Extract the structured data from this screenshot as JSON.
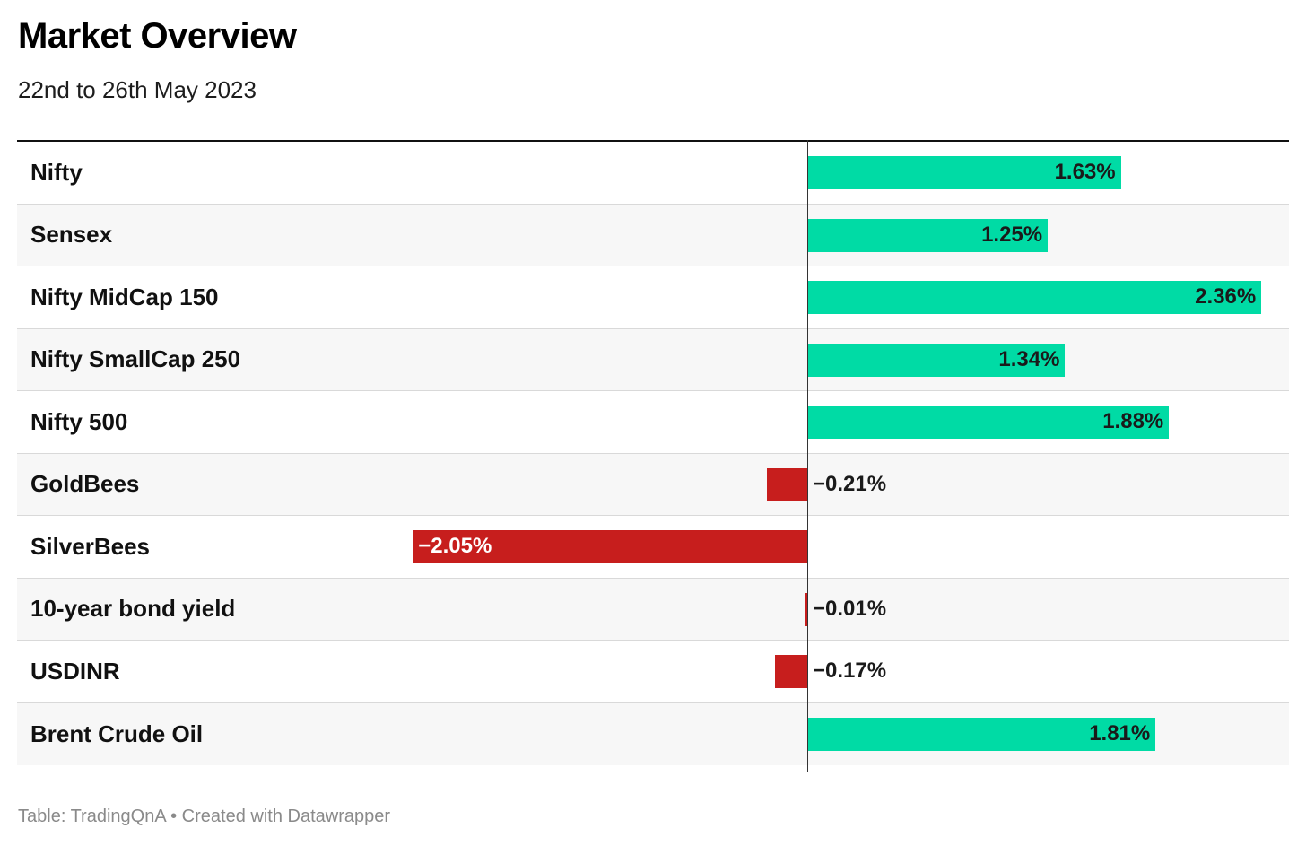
{
  "header": {
    "title": "Market Overview",
    "subtitle": "22nd to 26th May 2023"
  },
  "colors": {
    "positive": "#00dba5",
    "negative": "#c71e1d",
    "positive_label": "#1a1a1a",
    "negative_label_inside": "#ffffff",
    "negative_label_outside": "#1a1a1a"
  },
  "chart_data": {
    "type": "bar",
    "orientation": "horizontal",
    "unit": "%",
    "categories": [
      "Nifty",
      "Sensex",
      "Nifty MidCap 150",
      "Nifty SmallCap 250",
      "Nifty 500",
      "GoldBees",
      "SilverBees",
      "10-year bond yield",
      "USDINR",
      "Brent Crude Oil"
    ],
    "values": [
      1.63,
      1.25,
      2.36,
      1.34,
      1.88,
      -0.21,
      -2.05,
      -0.01,
      -0.17,
      1.81
    ],
    "value_labels": [
      "1.63%",
      "1.25%",
      "2.36%",
      "1.34%",
      "1.88%",
      "−0.21%",
      "−2.05%",
      "−0.01%",
      "−0.17%",
      "1.81%"
    ],
    "xlim": [
      -4.1,
      2.5
    ],
    "title": "Market Overview",
    "subtitle": "22nd to 26th May 2023"
  },
  "footer": {
    "text": "Table: TradingQnA • Created with Datawrapper"
  }
}
